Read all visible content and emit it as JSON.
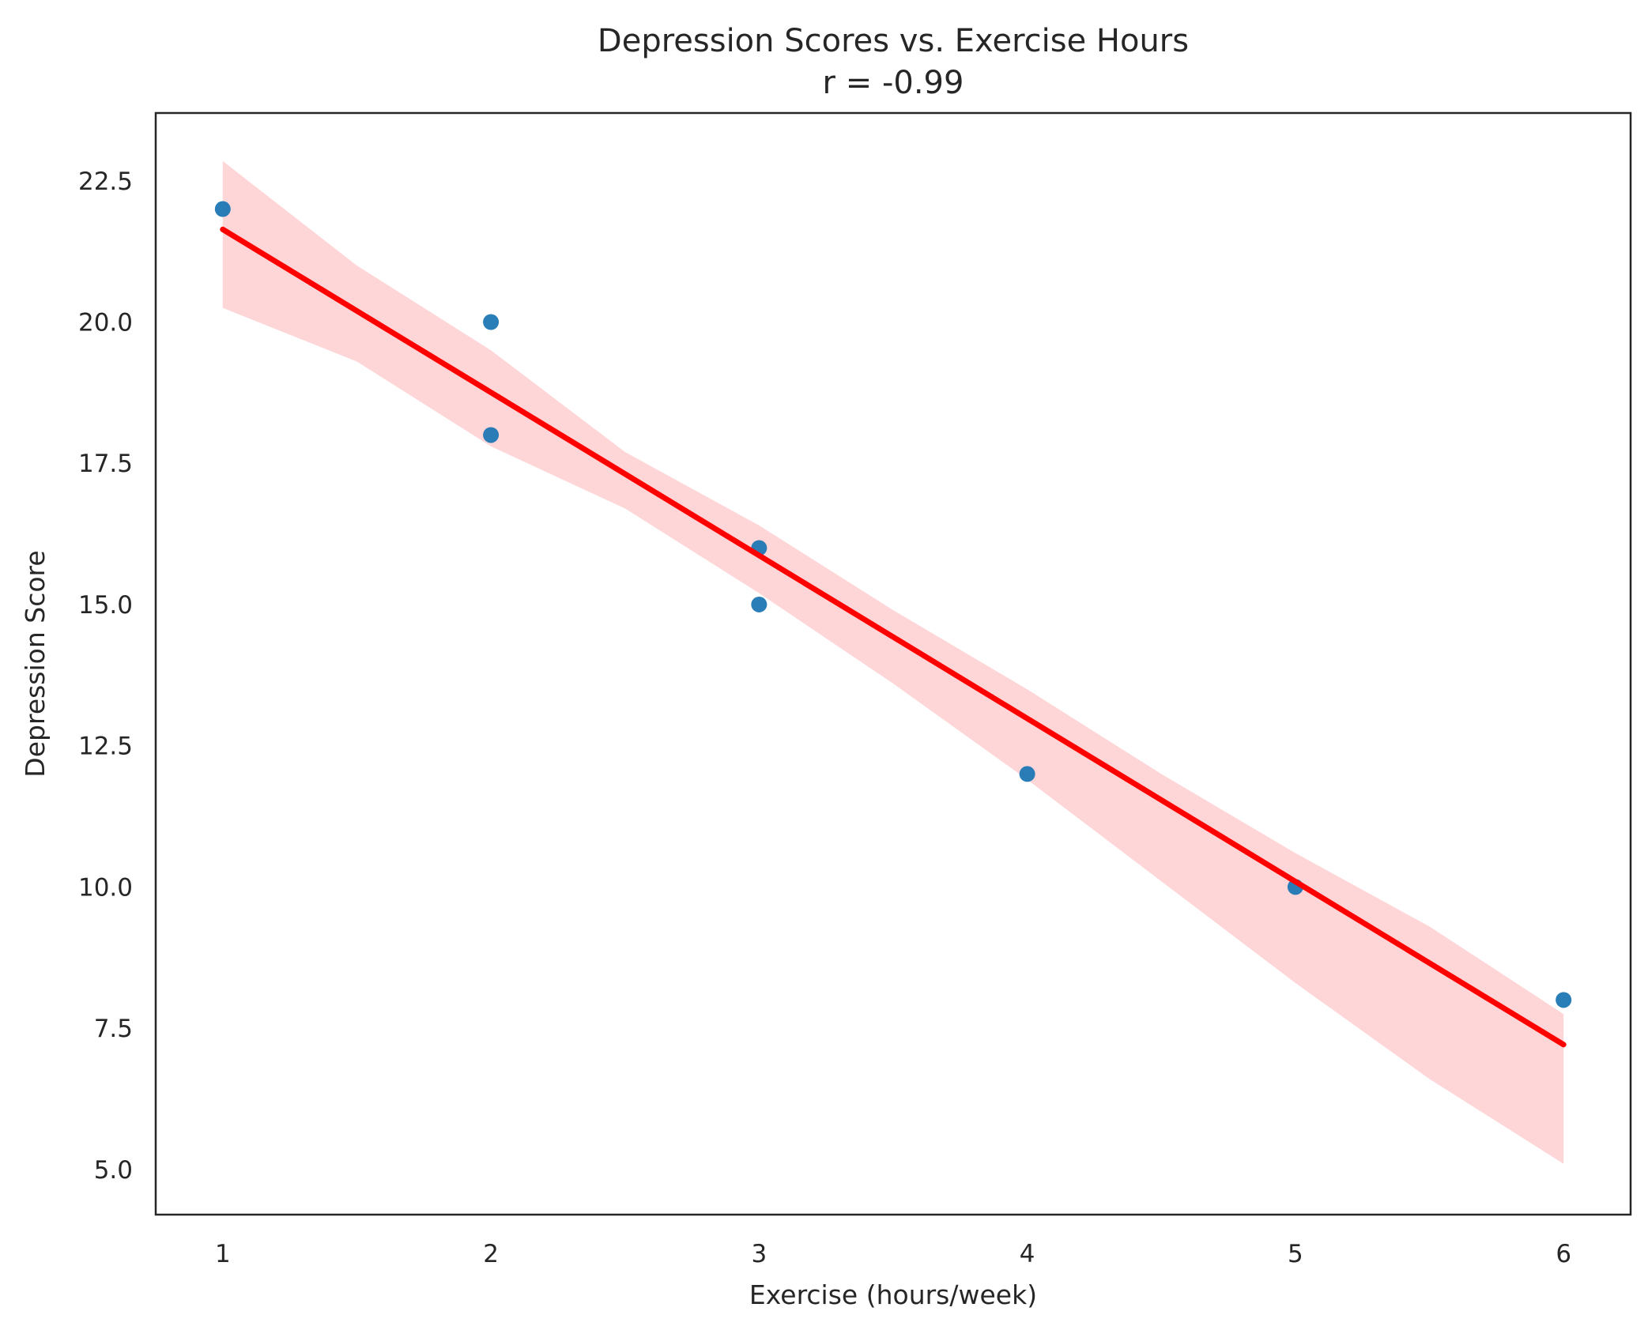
{
  "chart_data": {
    "type": "scatter",
    "title": "Depression Scores vs. Exercise Hours",
    "subtitle": "r = -0.99",
    "xlabel": "Exercise (hours/week)",
    "ylabel": "Depression Score",
    "xlim": [
      0.75,
      6.25
    ],
    "ylim": [
      4.2,
      23.7
    ],
    "xticks": [
      1,
      2,
      3,
      4,
      5,
      6
    ],
    "xtick_labels": [
      "1",
      "2",
      "3",
      "4",
      "5",
      "6"
    ],
    "yticks": [
      5.0,
      7.5,
      10.0,
      12.5,
      15.0,
      17.5,
      20.0,
      22.5
    ],
    "ytick_labels": [
      "5.0",
      "7.5",
      "10.0",
      "12.5",
      "15.0",
      "17.5",
      "20.0",
      "22.5"
    ],
    "grid": false,
    "series": [
      {
        "kind": "points",
        "x": [
          1,
          2,
          2,
          3,
          3,
          4,
          5,
          6
        ],
        "y": [
          22,
          20,
          18,
          16,
          15,
          12,
          10,
          8
        ]
      },
      {
        "kind": "regression_line",
        "x": [
          1,
          6
        ],
        "y": [
          21.64,
          7.21
        ]
      },
      {
        "kind": "confidence_band",
        "x": [
          1,
          1.5,
          2,
          2.5,
          3,
          3.5,
          4,
          4.5,
          5,
          5.5,
          6
        ],
        "upper": [
          22.85,
          21.0,
          19.5,
          17.7,
          16.4,
          14.9,
          13.5,
          12.0,
          10.6,
          9.3,
          7.75
        ],
        "lower": [
          20.25,
          19.3,
          17.8,
          16.7,
          15.2,
          13.6,
          11.9,
          10.1,
          8.3,
          6.6,
          5.1
        ]
      }
    ],
    "colors": {
      "points": "#1f77b4",
      "regression_line": "#ff0000",
      "confidence_band": "#ffd6d8",
      "axes": "#262626"
    }
  }
}
